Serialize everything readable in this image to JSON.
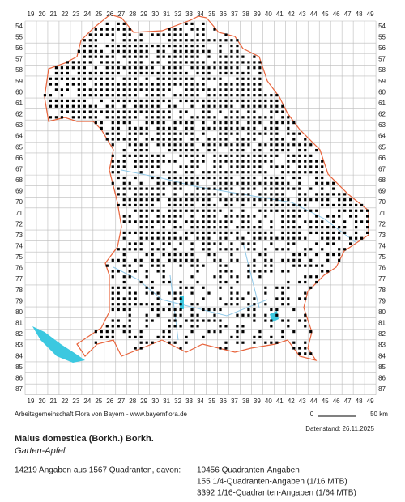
{
  "map": {
    "columns": [
      19,
      20,
      21,
      22,
      23,
      24,
      25,
      26,
      27,
      28,
      29,
      30,
      31,
      32,
      33,
      34,
      35,
      36,
      37,
      38,
      39,
      40,
      41,
      42,
      43,
      44,
      45,
      46,
      47,
      48,
      49
    ],
    "rows": [
      54,
      55,
      56,
      57,
      58,
      59,
      60,
      61,
      62,
      63,
      64,
      65,
      66,
      67,
      68,
      69,
      70,
      71,
      72,
      73,
      74,
      75,
      76,
      77,
      78,
      79,
      80,
      81,
      82,
      83,
      84,
      85,
      86,
      87
    ],
    "source": "Arbeitsgemeinschaft Flora von Bayern - www.bayernflora.de",
    "scale_start": "0",
    "scale_end": "50 km",
    "date": "Datenstand: 26.11.2025",
    "species": "Malus domestica (Borkh.) Borkh.",
    "common_name": "Garten-Apfel",
    "stats": {
      "summary": "14219 Angaben aus 1567 Quadranten, davon:",
      "lines": [
        "10456 Quadranten-Angaben",
        "155 1/4-Quadranten-Angaben (1/16 MTB)",
        "3392 1/16-Quadranten-Angaben (1/64 MTB)"
      ]
    }
  }
}
